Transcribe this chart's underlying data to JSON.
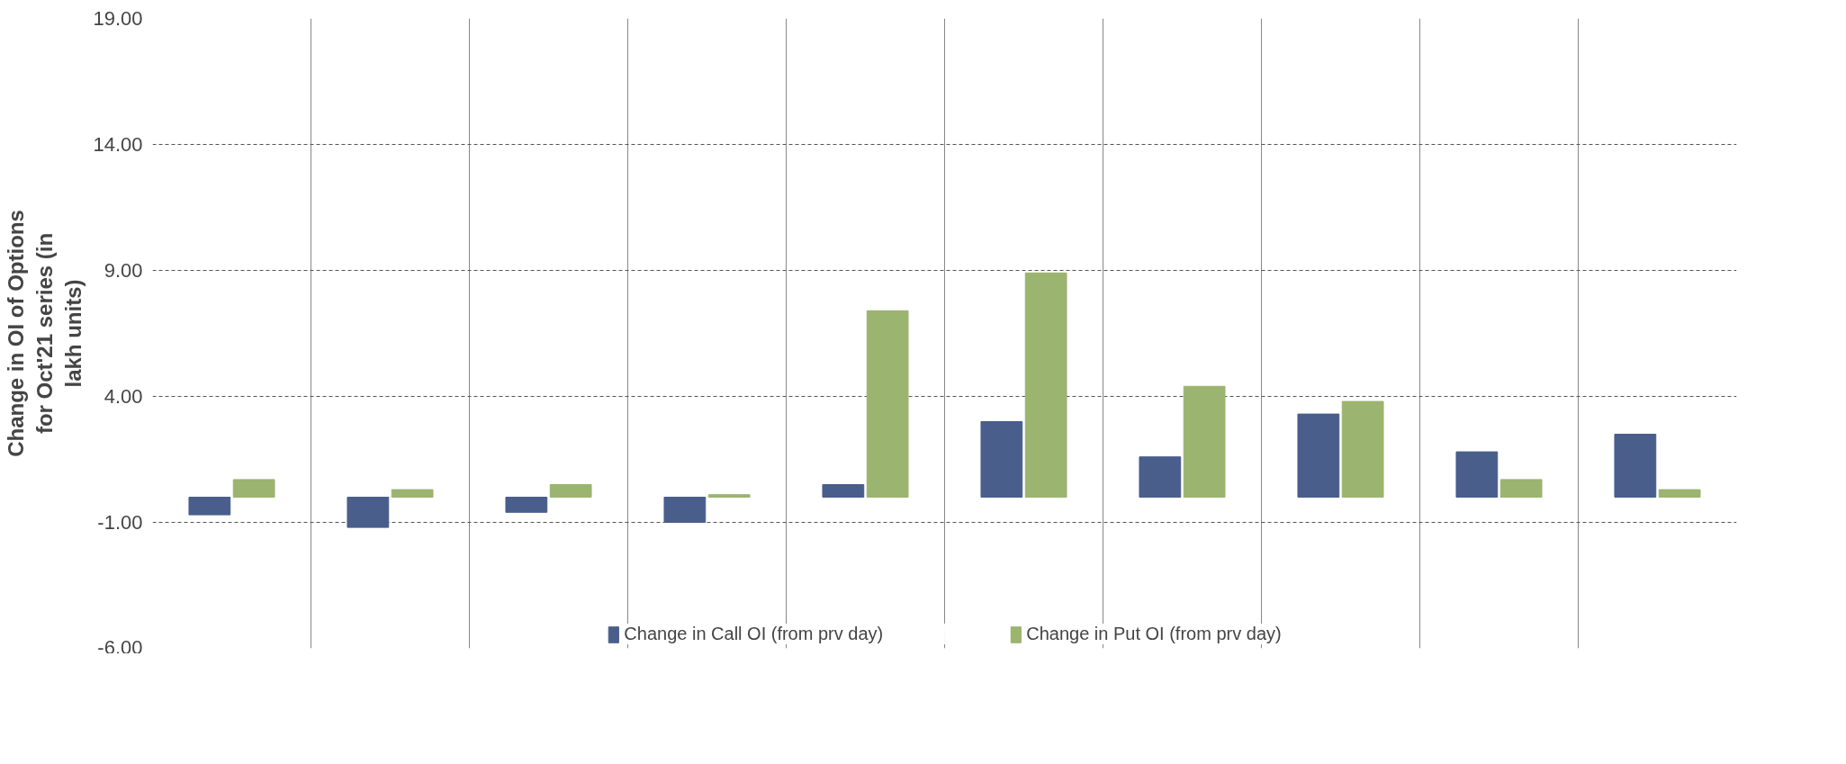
{
  "chart_data": {
    "type": "bar",
    "ylabel": "Change in OI of Options for Oct'21 series (in lakh units)",
    "categories": [
      null,
      null,
      null,
      null,
      null,
      null,
      null,
      null,
      null,
      null
    ],
    "series": [
      {
        "name": "Change in Call OI (from prv day)",
        "color": "#4a5e8c",
        "values": [
          -0.7,
          -1.2,
          -0.6,
          -1.0,
          0.5,
          3.0,
          1.6,
          3.3,
          1.8,
          2.5
        ]
      },
      {
        "name": "Change in Put OI (from prv day)",
        "color": "#9bb46f",
        "values": [
          0.7,
          0.3,
          0.5,
          0.1,
          7.4,
          8.9,
          4.4,
          3.8,
          0.7,
          0.3
        ]
      }
    ],
    "ylim": [
      -6,
      19
    ],
    "yticks": [
      {
        "value": -6,
        "label": "-6.00"
      },
      {
        "value": -1,
        "label": "-1.00"
      },
      {
        "value": 4,
        "label": "4.00"
      },
      {
        "value": 9,
        "label": "9.00"
      },
      {
        "value": 14,
        "label": "14.00"
      },
      {
        "value": 19,
        "label": "19.00"
      }
    ],
    "grid": true,
    "legend": "bottom"
  }
}
